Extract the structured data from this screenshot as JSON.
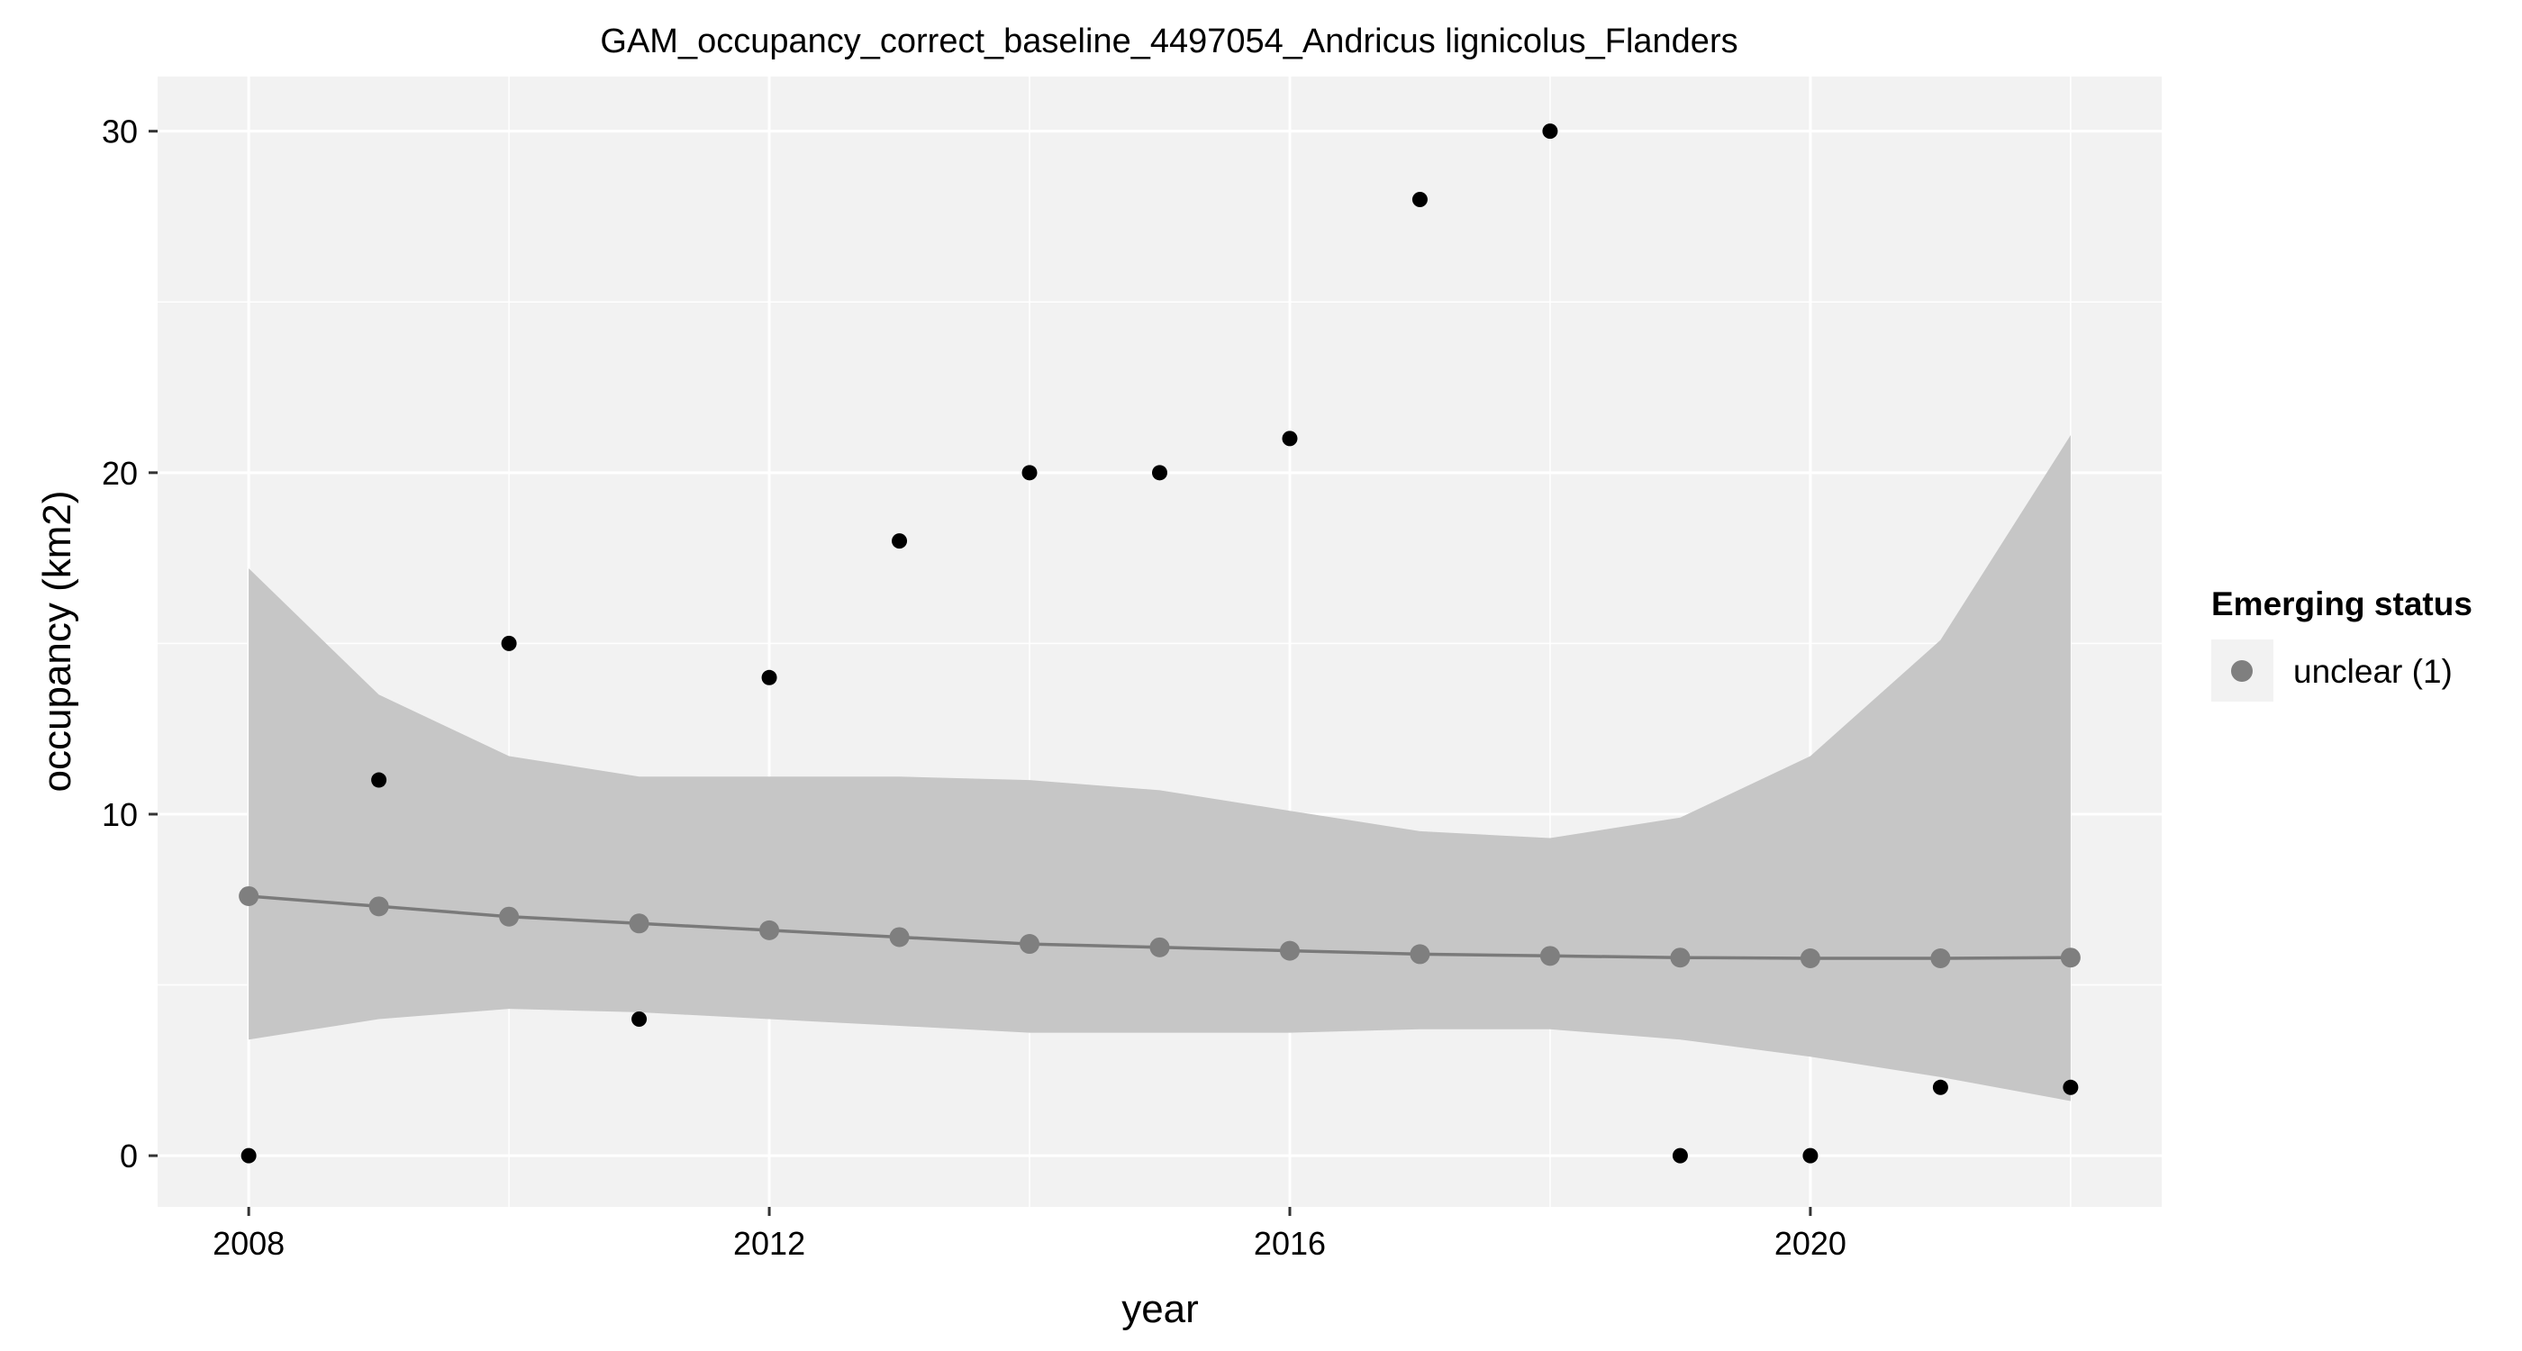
{
  "chart_data": {
    "type": "scatter",
    "title": "GAM_occupancy_correct_baseline_4497054_Andricus lignicolus_Flanders",
    "xlabel": "year",
    "ylabel": "occupancy (km2)",
    "xlim": [
      2007.3,
      2022.7
    ],
    "ylim": [
      -1.5,
      31.6
    ],
    "x_ticks": [
      2008,
      2012,
      2016,
      2020
    ],
    "y_ticks": [
      0,
      10,
      20,
      30
    ],
    "x_minor_ticks": [
      2010,
      2014,
      2018,
      2022
    ],
    "y_minor_ticks": [
      5,
      15,
      25
    ],
    "grid": true,
    "observed": {
      "x": [
        2008,
        2009,
        2010,
        2011,
        2012,
        2013,
        2014,
        2015,
        2016,
        2017,
        2018,
        2019,
        2020,
        2021,
        2022
      ],
      "y": [
        0,
        11,
        15,
        4,
        14,
        18,
        20,
        20,
        21,
        28,
        30,
        0,
        0,
        2,
        2
      ],
      "color": "#000000"
    },
    "fit": {
      "x": [
        2008,
        2009,
        2010,
        2011,
        2012,
        2013,
        2014,
        2015,
        2016,
        2017,
        2018,
        2019,
        2020,
        2021,
        2022
      ],
      "y": [
        7.6,
        7.3,
        7.0,
        6.8,
        6.6,
        6.4,
        6.2,
        6.1,
        6.0,
        5.9,
        5.85,
        5.8,
        5.78,
        5.78,
        5.8
      ],
      "lower": [
        3.4,
        4.0,
        4.3,
        4.2,
        4.0,
        3.8,
        3.6,
        3.6,
        3.6,
        3.7,
        3.7,
        3.4,
        2.9,
        2.3,
        1.6
      ],
      "upper": [
        17.2,
        13.5,
        11.7,
        11.1,
        11.1,
        11.1,
        11.0,
        10.7,
        10.1,
        9.5,
        9.3,
        9.9,
        11.7,
        15.1,
        21.1
      ],
      "line_color": "#7a7a7a",
      "point_color": "#7f7f7f",
      "band_color": "#c6c6c6"
    },
    "legend": {
      "title": "Emerging status",
      "entries": [
        {
          "label": "unclear (1)",
          "color": "#7f7f7f"
        }
      ],
      "placement": "right"
    },
    "colors": {
      "panel": "#f2f2f2",
      "grid": "#ffffff",
      "tick": "#333333"
    }
  }
}
